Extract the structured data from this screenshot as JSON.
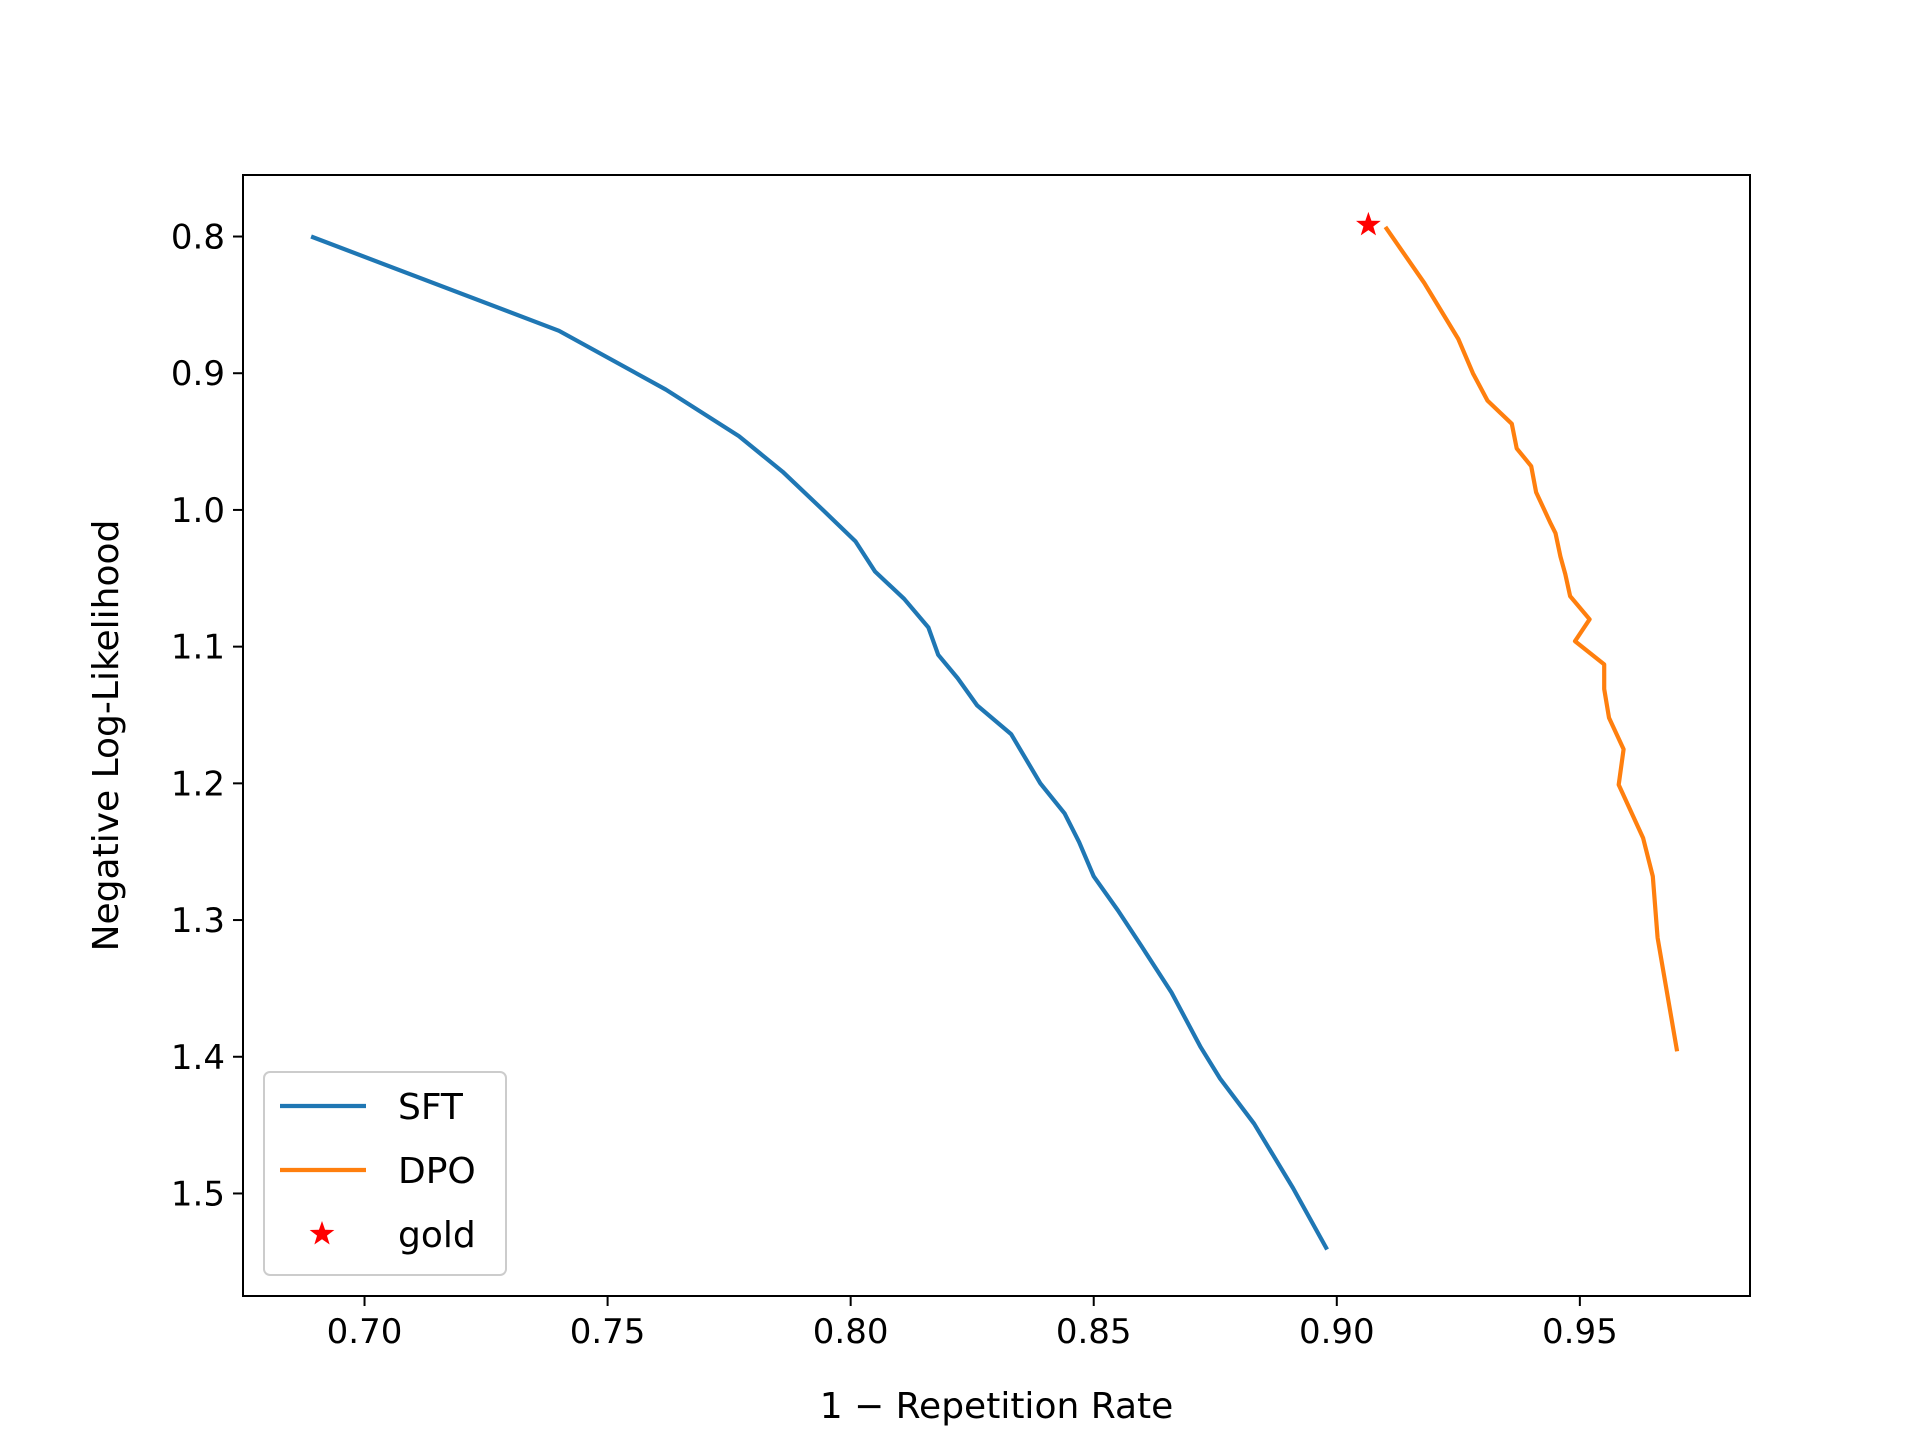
{
  "chart_data": {
    "type": "line",
    "xlabel": "1 − Repetition Rate",
    "ylabel": "Negative Log-Likelihood",
    "xlim": [
      0.675,
      0.985
    ],
    "ylim": [
      1.575,
      0.755
    ],
    "y_inverted": true,
    "grid": false,
    "legend_position": "lower left",
    "xticks": [
      "0.70",
      "0.75",
      "0.80",
      "0.85",
      "0.90",
      "0.95"
    ],
    "xtick_values": [
      0.7,
      0.75,
      0.8,
      0.85,
      0.9,
      0.95
    ],
    "yticks": [
      "0.8",
      "0.9",
      "1.0",
      "1.1",
      "1.2",
      "1.3",
      "1.4",
      "1.5"
    ],
    "ytick_values": [
      0.8,
      0.9,
      1.0,
      1.1,
      1.2,
      1.3,
      1.4,
      1.5
    ],
    "series": [
      {
        "name": "SFT",
        "kind": "line",
        "color": "#1f77b4",
        "x": [
          0.689,
          0.74,
          0.762,
          0.777,
          0.786,
          0.794,
          0.801,
          0.805,
          0.811,
          0.816,
          0.818,
          0.822,
          0.826,
          0.833,
          0.836,
          0.839,
          0.844,
          0.847,
          0.85,
          0.855,
          0.86,
          0.866,
          0.872,
          0.876,
          0.883,
          0.891,
          0.898
        ],
        "y": [
          0.8,
          0.869,
          0.912,
          0.946,
          0.972,
          0.999,
          1.023,
          1.045,
          1.065,
          1.086,
          1.106,
          1.123,
          1.143,
          1.164,
          1.182,
          1.2,
          1.222,
          1.243,
          1.268,
          1.293,
          1.32,
          1.353,
          1.393,
          1.416,
          1.449,
          1.496,
          1.541
        ]
      },
      {
        "name": "DPO",
        "kind": "line",
        "color": "#ff7f0e",
        "x": [
          0.91,
          0.918,
          0.925,
          0.928,
          0.931,
          0.936,
          0.937,
          0.94,
          0.941,
          0.944,
          0.945,
          0.946,
          0.947,
          0.948,
          0.952,
          0.949,
          0.955,
          0.955,
          0.956,
          0.959,
          0.958,
          0.963,
          0.965,
          0.966,
          0.97
        ],
        "y": [
          0.793,
          0.834,
          0.875,
          0.9,
          0.92,
          0.937,
          0.955,
          0.968,
          0.987,
          1.01,
          1.017,
          1.034,
          1.047,
          1.063,
          1.08,
          1.096,
          1.113,
          1.131,
          1.152,
          1.175,
          1.201,
          1.24,
          1.268,
          1.313,
          1.396
        ]
      },
      {
        "name": "gold",
        "kind": "scatter",
        "marker": "star",
        "color": "#ff0000",
        "x": [
          0.9065
        ],
        "y": [
          0.7915
        ]
      }
    ]
  }
}
